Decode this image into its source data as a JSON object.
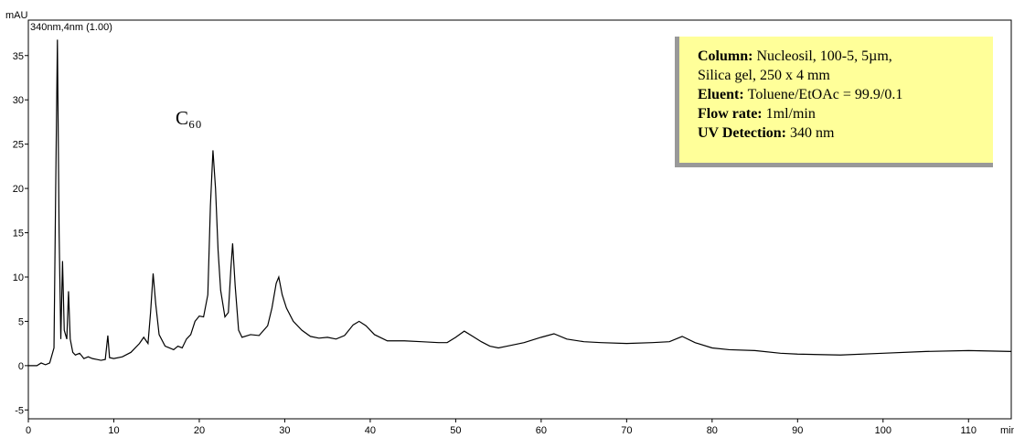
{
  "chart_data": {
    "type": "line",
    "y_label": "mAU",
    "x_label": "min",
    "annotations": [
      "340nm,4nm (1.00)",
      "C₆₀"
    ],
    "info_box": [
      {
        "label": "Column:",
        "text": "Nucleosil, 100-5, 5µm,"
      },
      {
        "text": "Silica gel, 250 x 4 mm"
      },
      {
        "label": "Eluent:",
        "text": "Toluene/EtOAc = 99.9/0.1"
      },
      {
        "label": "Flow rate:",
        "text": "1ml/min"
      },
      {
        "label": "UV Detection:",
        "text": "340 nm"
      }
    ],
    "color": "#000000",
    "x": [
      0,
      1,
      1.5,
      2,
      2.5,
      3,
      3.2,
      3.4,
      3.6,
      3.8,
      4.0,
      4.2,
      4.5,
      4.7,
      4.9,
      5.2,
      5.5,
      6,
      6.5,
      7,
      7.5,
      8,
      8.5,
      9,
      9.3,
      9.5,
      10,
      11,
      12,
      13,
      13.5,
      14,
      14.3,
      14.6,
      14.9,
      15.3,
      16,
      16.5,
      17,
      17.5,
      18,
      18.5,
      19,
      19.5,
      20,
      20.5,
      21,
      21.3,
      21.6,
      21.9,
      22.2,
      22.5,
      23,
      23.4,
      23.7,
      23.9,
      24.2,
      24.6,
      25,
      26,
      27,
      28,
      28.5,
      29,
      29.3,
      29.7,
      30.2,
      31,
      32,
      33,
      34,
      35,
      36,
      37,
      38,
      38.7,
      39.5,
      40.5,
      42,
      44,
      46,
      48,
      49,
      50,
      51,
      52,
      53,
      54,
      55,
      56,
      58,
      60,
      61.5,
      63,
      65,
      67,
      70,
      73,
      75,
      76.5,
      78,
      80,
      82,
      85,
      88,
      90,
      95,
      100,
      105,
      110,
      115
    ],
    "values": [
      0,
      0,
      0.3,
      0.1,
      0.3,
      2,
      20,
      36.8,
      15,
      3,
      11.8,
      4,
      3,
      8.4,
      3,
      1.5,
      1.2,
      1.4,
      0.8,
      1.0,
      0.8,
      0.7,
      0.6,
      0.7,
      3.4,
      0.9,
      0.8,
      1.0,
      1.5,
      2.5,
      3.2,
      2.5,
      6,
      10.4,
      7,
      3.5,
      2.2,
      2.0,
      1.8,
      2.2,
      2.0,
      3.0,
      3.5,
      5.0,
      5.6,
      5.5,
      8,
      18,
      24.3,
      20,
      13,
      8.5,
      5.5,
      6,
      11,
      13.8,
      9,
      4,
      3.2,
      3.5,
      3.4,
      4.5,
      6.5,
      9.3,
      10,
      8,
      6.5,
      5.0,
      4,
      3.3,
      3.1,
      3.2,
      3.0,
      3.4,
      4.6,
      5.0,
      4.5,
      3.5,
      2.8,
      2.8,
      2.7,
      2.6,
      2.6,
      3.2,
      3.9,
      3.3,
      2.7,
      2.2,
      2.0,
      2.2,
      2.6,
      3.2,
      3.6,
      3.0,
      2.7,
      2.6,
      2.5,
      2.6,
      2.7,
      3.3,
      2.6,
      2.0,
      1.8,
      1.7,
      1.4,
      1.3,
      1.2,
      1.4,
      1.6,
      1.7,
      1.6
    ],
    "xlim": [
      0,
      115
    ],
    "ylim": [
      -6,
      39
    ],
    "xticks": [
      0,
      10,
      20,
      30,
      40,
      50,
      60,
      70,
      80,
      90,
      100,
      110
    ],
    "yticks": [
      -5,
      0,
      5,
      10,
      15,
      20,
      25,
      30,
      35
    ]
  }
}
